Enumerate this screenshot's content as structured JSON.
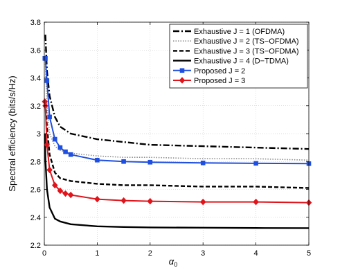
{
  "chart_data": {
    "type": "line",
    "title": "",
    "xlabel_base": "α",
    "xlabel_sub": "0",
    "ylabel": "Spectral efficiency (bits/s/Hz)",
    "xlim": [
      0,
      5
    ],
    "ylim": [
      2.2,
      3.8
    ],
    "xticks": [
      0,
      1,
      2,
      3,
      4,
      5
    ],
    "yticks": [
      2.2,
      2.4,
      2.6,
      2.8,
      3,
      3.2,
      3.4,
      3.6,
      3.8
    ],
    "grid": true,
    "legend_position": "top-right",
    "series": [
      {
        "name": "Exhaustive J = 1 (OFDMA)",
        "color": "#000000",
        "line_style": "dash-dot",
        "marker": "none",
        "x": [
          0.02,
          0.05,
          0.1,
          0.2,
          0.3,
          0.5,
          0.75,
          1,
          1.5,
          2,
          3,
          4,
          5
        ],
        "y": [
          3.71,
          3.45,
          3.27,
          3.12,
          3.05,
          3.0,
          2.98,
          2.96,
          2.94,
          2.92,
          2.91,
          2.9,
          2.89
        ]
      },
      {
        "name": "Exhaustive J = 2 (TS−OFDMA)",
        "color": "#8c8c8c",
        "line_style": "dotted",
        "marker": "none",
        "x": [
          0.02,
          0.05,
          0.1,
          0.2,
          0.3,
          0.5,
          1,
          1.5,
          2,
          3,
          4,
          5
        ],
        "y": [
          3.5,
          3.2,
          3.0,
          2.91,
          2.88,
          2.86,
          2.84,
          2.83,
          2.83,
          2.82,
          2.82,
          2.81
        ]
      },
      {
        "name": "Exhaustive J = 3 (TS−OFDMA)",
        "color": "#000000",
        "line_style": "dashed",
        "marker": "none",
        "x": [
          0.02,
          0.05,
          0.1,
          0.2,
          0.3,
          0.5,
          1,
          1.5,
          2,
          3,
          4,
          5
        ],
        "y": [
          3.22,
          3.05,
          2.85,
          2.72,
          2.68,
          2.66,
          2.64,
          2.63,
          2.63,
          2.62,
          2.62,
          2.61
        ]
      },
      {
        "name": "Exhaustive J = 4 (D−TDMA)",
        "color": "#000000",
        "line_style": "solid",
        "marker": "none",
        "x": [
          0.01,
          0.02,
          0.05,
          0.1,
          0.2,
          0.3,
          0.5,
          1,
          1.5,
          2,
          3,
          4,
          5
        ],
        "y": [
          3.0,
          2.82,
          2.6,
          2.47,
          2.39,
          2.37,
          2.35,
          2.335,
          2.33,
          2.327,
          2.325,
          2.323,
          2.322
        ]
      },
      {
        "name": "Proposed J = 2",
        "color": "#1f4fe0",
        "line_style": "solid",
        "marker": "square",
        "x": [
          0.01,
          0.02,
          0.05,
          0.1,
          0.2,
          0.3,
          0.4,
          0.5,
          1,
          1.5,
          2,
          3,
          4,
          5
        ],
        "y": [
          3.54,
          3.54,
          3.38,
          3.12,
          2.96,
          2.9,
          2.87,
          2.85,
          2.81,
          2.8,
          2.795,
          2.79,
          2.787,
          2.785
        ]
      },
      {
        "name": "Proposed J = 3",
        "color": "#e0141b",
        "line_style": "solid",
        "marker": "diamond",
        "x": [
          0.01,
          0.02,
          0.05,
          0.1,
          0.2,
          0.3,
          0.4,
          0.5,
          1,
          1.5,
          2,
          3,
          4,
          5
        ],
        "y": [
          3.23,
          3.2,
          2.92,
          2.74,
          2.63,
          2.59,
          2.57,
          2.56,
          2.53,
          2.52,
          2.515,
          2.51,
          2.51,
          2.505
        ]
      }
    ]
  }
}
